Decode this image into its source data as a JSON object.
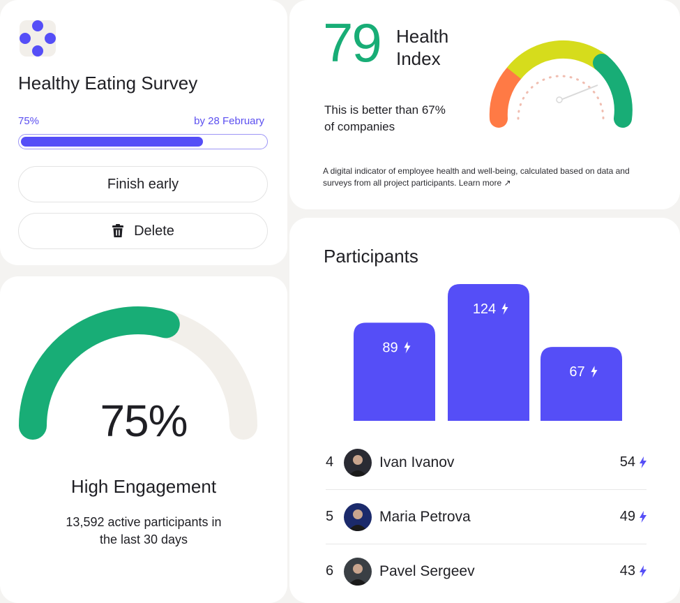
{
  "colors": {
    "accent": "#554ef7",
    "green": "#18ad76",
    "orange": "#ff7a45",
    "yellow": "#d6dc1c",
    "track": "#f2efea"
  },
  "survey": {
    "logo_icon": "dots-flower-logo",
    "title": "Healthy Eating Survey",
    "progress_label": "75%",
    "progress_value": 0.75,
    "due_label": "by 28 February",
    "finish_label": "Finish early",
    "delete_label": "Delete",
    "delete_icon": "trash-icon"
  },
  "health": {
    "score": "79",
    "title_line1": "Health",
    "title_line2": "Index",
    "comparison_line1": "This is better than 67%",
    "comparison_line2": "of companies",
    "description": "A digital indicator of employee health and well-being, calculated based on data and surveys from all project participants.",
    "learn_more": "Learn more ↗",
    "gauge_value": 79
  },
  "engagement": {
    "percent_label": "75%",
    "percent_value": 0.75,
    "title": "High Engagement",
    "subtitle_line1": "13,592 active participants in",
    "subtitle_line2": "the last 30 days"
  },
  "participants": {
    "title": "Participants",
    "podium": [
      {
        "value": 89,
        "label": "89"
      },
      {
        "value": 124,
        "label": "124"
      },
      {
        "value": 67,
        "label": "67"
      }
    ],
    "list": [
      {
        "rank": "4",
        "name": "Ivan Ivanov",
        "score": "54",
        "avatar": "user-avatar-ivan"
      },
      {
        "rank": "5",
        "name": "Maria Petrova",
        "score": "49",
        "avatar": "user-avatar-maria"
      },
      {
        "rank": "6",
        "name": "Pavel Sergeev",
        "score": "43",
        "avatar": "user-avatar-pavel"
      }
    ],
    "score_icon": "lightning-icon"
  }
}
